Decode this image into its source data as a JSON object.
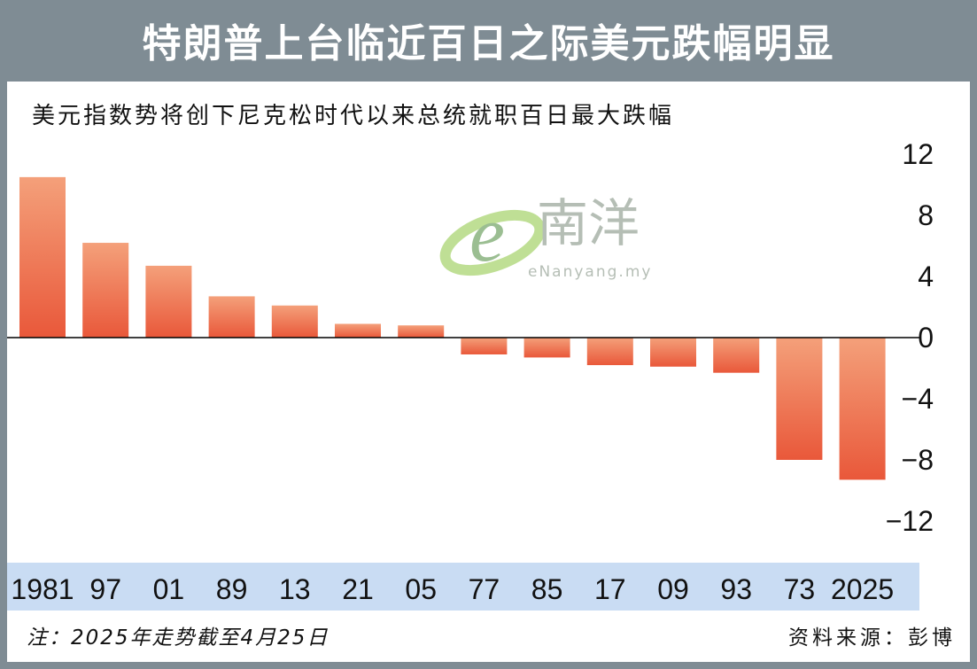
{
  "title": "特朗普上台临近百日之际美元跌幅明显",
  "subtitle": "美元指数势将创下尼克松时代以来总统就职百日最大跌幅",
  "watermark": {
    "logo_text": "南洋",
    "url": "eNanyang.my"
  },
  "note": "注：2025年走势截至4月25日",
  "source": "资料来源：彭博",
  "colors": {
    "header": "#7f8c94",
    "bar_top": "#f4a07a",
    "bar_bottom": "#e9583a",
    "axis_band": "#c9dcf3"
  },
  "chart_data": {
    "type": "bar",
    "categories": [
      "1981",
      "97",
      "01",
      "89",
      "13",
      "21",
      "05",
      "77",
      "85",
      "17",
      "09",
      "93",
      "73",
      "2025"
    ],
    "values": [
      10.5,
      6.2,
      4.7,
      2.7,
      2.1,
      0.9,
      0.8,
      -1.1,
      -1.3,
      -1.8,
      -1.9,
      -2.3,
      -8.0,
      -9.3
    ],
    "y_ticks": [
      "12",
      "8",
      "4",
      "0",
      "−4",
      "−8",
      "−12"
    ],
    "ylim": [
      -12,
      12
    ],
    "yaxis_side": "right",
    "grid": false
  }
}
